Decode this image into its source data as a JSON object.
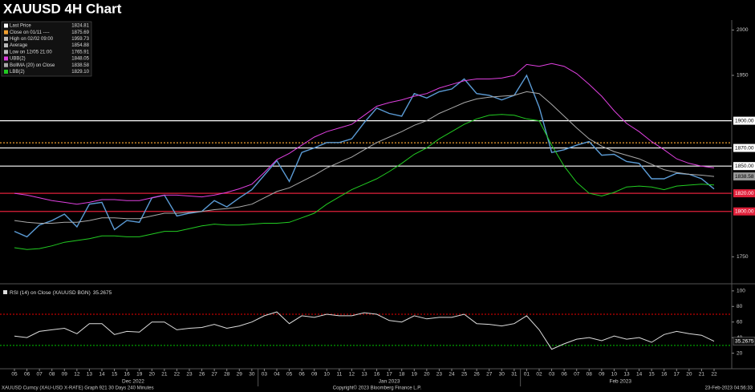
{
  "chart_data": [
    {
      "type": "line",
      "title": "XAUUSD 4H Chart",
      "categories": [
        "05",
        "06",
        "07",
        "08",
        "09",
        "12",
        "13",
        "14",
        "15",
        "16",
        "19",
        "20",
        "21",
        "22",
        "23",
        "26",
        "27",
        "28",
        "29",
        "30",
        "03",
        "04",
        "05",
        "06",
        "09",
        "10",
        "11",
        "12",
        "13",
        "16",
        "17",
        "18",
        "19",
        "20",
        "23",
        "24",
        "25",
        "26",
        "27",
        "30",
        "31",
        "01",
        "02",
        "03",
        "06",
        "07",
        "08",
        "09",
        "10",
        "13",
        "14",
        "15",
        "16",
        "17",
        "20",
        "21",
        "22"
      ],
      "x_group_labels": [
        "Dec 2022",
        "Jan 2023",
        "Feb 2023"
      ],
      "series": [
        {
          "name": "Last Price",
          "color": "#5b9bd5",
          "values": [
            1778,
            1772,
            1785,
            1790,
            1797,
            1783,
            1808,
            1810,
            1780,
            1790,
            1788,
            1815,
            1818,
            1795,
            1798,
            1800,
            1812,
            1805,
            1815,
            1824,
            1840,
            1856,
            1833,
            1865,
            1870,
            1876,
            1876,
            1880,
            1898,
            1914,
            1908,
            1905,
            1930,
            1925,
            1932,
            1935,
            1946,
            1930,
            1928,
            1923,
            1928,
            1950,
            1915,
            1865,
            1868,
            1873,
            1877,
            1862,
            1863,
            1855,
            1853,
            1836,
            1836,
            1842,
            1841,
            1836,
            1824.81
          ]
        },
        {
          "name": "UBB(2)",
          "color": "#e040e0",
          "values": [
            1820,
            1818,
            1815,
            1812,
            1810,
            1808,
            1810,
            1813,
            1813,
            1812,
            1812,
            1815,
            1818,
            1818,
            1817,
            1816,
            1818,
            1821,
            1825,
            1830,
            1843,
            1857,
            1864,
            1873,
            1882,
            1888,
            1892,
            1896,
            1906,
            1916,
            1920,
            1923,
            1927,
            1930,
            1936,
            1940,
            1944,
            1946,
            1946,
            1947,
            1950,
            1962,
            1960,
            1963,
            1960,
            1952,
            1940,
            1927,
            1911,
            1897,
            1888,
            1877,
            1868,
            1858,
            1853,
            1850,
            1848.05
          ]
        },
        {
          "name": "BollMA (20) on Close",
          "color": "#aaaaaa",
          "values": [
            1790,
            1788,
            1787,
            1787,
            1788,
            1788,
            1790,
            1793,
            1793,
            1792,
            1792,
            1795,
            1798,
            1798,
            1799,
            1800,
            1802,
            1803,
            1805,
            1808,
            1815,
            1822,
            1826,
            1833,
            1840,
            1848,
            1854,
            1860,
            1868,
            1876,
            1882,
            1888,
            1895,
            1900,
            1908,
            1914,
            1920,
            1924,
            1926,
            1927,
            1928,
            1932,
            1930,
            1918,
            1905,
            1892,
            1880,
            1872,
            1866,
            1862,
            1858,
            1852,
            1846,
            1843,
            1841,
            1840,
            1838.58
          ]
        },
        {
          "name": "LBB(2)",
          "color": "#22cc22",
          "values": [
            1760,
            1758,
            1759,
            1762,
            1766,
            1768,
            1770,
            1773,
            1773,
            1772,
            1772,
            1775,
            1778,
            1778,
            1781,
            1784,
            1786,
            1785,
            1785,
            1786,
            1787,
            1787,
            1788,
            1793,
            1798,
            1808,
            1816,
            1824,
            1830,
            1836,
            1844,
            1853,
            1863,
            1870,
            1880,
            1888,
            1896,
            1902,
            1906,
            1907,
            1906,
            1902,
            1900,
            1873,
            1850,
            1832,
            1820,
            1817,
            1821,
            1827,
            1828,
            1827,
            1824,
            1828,
            1829,
            1830,
            1829.1
          ]
        }
      ],
      "legend": [
        {
          "label": "Last Price",
          "value": 1824.81,
          "color": "#ffffff"
        },
        {
          "label": "Close on 01/11 ----",
          "value": 1875.69,
          "color": "#f0a030"
        },
        {
          "label": "High on 02/02 09:00",
          "value": 1959.73,
          "color": "#bbbbbb"
        },
        {
          "label": "Average",
          "value": 1854.88,
          "color": "#bbbbbb"
        },
        {
          "label": "Low on 12/05 21:00",
          "value": 1765.91,
          "color": "#bbbbbb"
        },
        {
          "label": "UBB(2)",
          "value": 1848.05,
          "color": "#e040e0"
        },
        {
          "label": "BollMA (20)  on Close",
          "value": 1838.58,
          "color": "#aaaaaa"
        },
        {
          "label": "LBB(2)",
          "value": {
            "value": 1829.1,
            "label": "1829.10"
          },
          "color": "#22cc22"
        }
      ],
      "levels": [
        {
          "value": 1900,
          "label": "1900.00",
          "color": "#ffffff"
        },
        {
          "value": 1875.69,
          "color": "#f0a030"
        },
        {
          "value": 1870,
          "label": "1870.00",
          "color": "#ffffff"
        },
        {
          "value": 1850,
          "label": "1850.00",
          "color": "#ffffff"
        },
        {
          "value": 1820,
          "label": "1820.00",
          "color": "#e0203a"
        },
        {
          "value": 1800,
          "label": "1800.00",
          "color": "#e0203a"
        }
      ],
      "ylim": [
        1722,
        2011
      ],
      "yticks": [
        1750,
        1950,
        2000
      ]
    },
    {
      "type": "line",
      "series": [
        {
          "name": "RSI (14) on Close (XAUUSD BGN)",
          "color": "#dddddd",
          "values": [
            42,
            40,
            48,
            50,
            52,
            45,
            58,
            58,
            44,
            48,
            47,
            60,
            60,
            50,
            52,
            53,
            57,
            52,
            55,
            60,
            68,
            73,
            58,
            68,
            66,
            70,
            68,
            68,
            72,
            70,
            62,
            60,
            68,
            64,
            66,
            66,
            70,
            58,
            57,
            55,
            58,
            68,
            50,
            25,
            32,
            38,
            40,
            36,
            42,
            38,
            40,
            34,
            44,
            48,
            45,
            43,
            35.2675
          ]
        }
      ],
      "levels": [
        {
          "value": 70,
          "color": "#c00000"
        },
        {
          "value": 30,
          "color": "#00a000"
        }
      ],
      "ylim": [
        0,
        105
      ],
      "yticks": [
        20,
        40,
        60,
        80,
        100
      ]
    }
  ],
  "footer": {
    "left": "XAUUSD Curncy (XAU-USD X-RATE) Graph 921 30 Days 240 Minutes",
    "center": "Copyright© 2023 Bloomberg Finance L.P.",
    "right": "23-Feb-2023 04:56:33"
  }
}
